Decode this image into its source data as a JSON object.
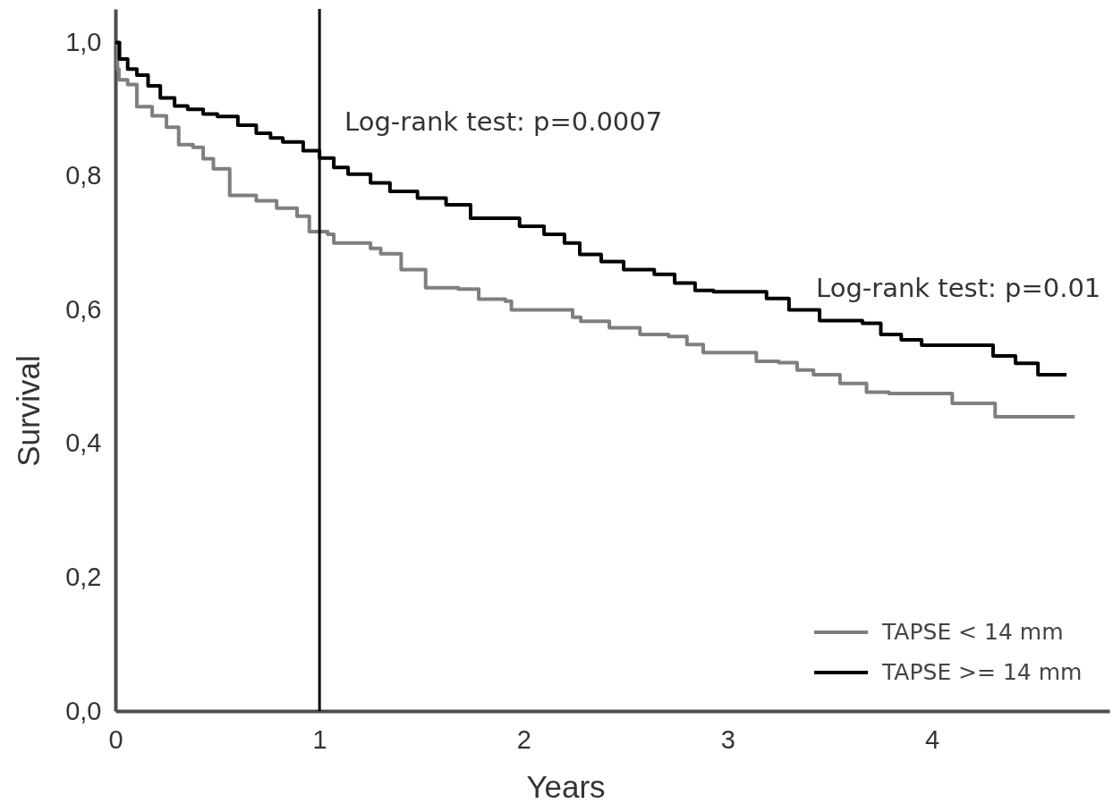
{
  "chart_data": {
    "type": "step",
    "xlabel": "Years",
    "ylabel": "Survival",
    "xlim": [
      0,
      4.87
    ],
    "ylim": [
      0,
      1.05
    ],
    "xticks": [
      0,
      1,
      2,
      3,
      4
    ],
    "yticks": [
      {
        "value": 0,
        "label": "0,0"
      },
      {
        "value": 0.2,
        "label": "0,2"
      },
      {
        "value": 0.4,
        "label": "0,4"
      },
      {
        "value": 0.6,
        "label": "0,6"
      },
      {
        "value": 0.8,
        "label": "0,8"
      },
      {
        "value": 1.0,
        "label": "1,0"
      }
    ],
    "legend": "bottom right",
    "series": [
      {
        "name": "TAPSE < 14 mm",
        "color": "#7f7f7f",
        "x": [
          0,
          0.01,
          0.017,
          0.06,
          0.105,
          0.18,
          0.25,
          0.31,
          0.38,
          0.43,
          0.48,
          0.56,
          0.69,
          0.79,
          0.89,
          0.95,
          1.04,
          1.07,
          1.25,
          1.3,
          1.4,
          1.52,
          1.68,
          1.78,
          1.91,
          1.94,
          2.24,
          2.28,
          2.42,
          2.57,
          2.71,
          2.8,
          2.88,
          3.14,
          3.25,
          3.34,
          3.42,
          3.55,
          3.68,
          3.79,
          4.1,
          4.31,
          4.7
        ],
        "values": [
          1.0,
          0.96,
          0.944,
          0.937,
          0.904,
          0.89,
          0.873,
          0.847,
          0.843,
          0.826,
          0.811,
          0.771,
          0.763,
          0.752,
          0.74,
          0.717,
          0.713,
          0.7,
          0.692,
          0.684,
          0.66,
          0.633,
          0.631,
          0.616,
          0.613,
          0.6,
          0.589,
          0.583,
          0.573,
          0.563,
          0.56,
          0.548,
          0.536,
          0.523,
          0.521,
          0.51,
          0.503,
          0.49,
          0.477,
          0.475,
          0.46,
          0.44,
          0.44
        ]
      },
      {
        "name": "TAPSE >= 14 mm",
        "color": "#000000",
        "x": [
          0,
          0.02,
          0.06,
          0.105,
          0.16,
          0.22,
          0.29,
          0.354,
          0.43,
          0.5,
          0.6,
          0.69,
          0.76,
          0.82,
          0.92,
          1.0,
          1.07,
          1.14,
          1.25,
          1.345,
          1.48,
          1.62,
          1.74,
          1.98,
          2.1,
          2.2,
          2.275,
          2.38,
          2.49,
          2.64,
          2.74,
          2.84,
          2.93,
          3.19,
          3.3,
          3.45,
          3.66,
          3.75,
          3.85,
          3.95,
          4.3,
          4.41,
          4.52,
          4.66
        ],
        "values": [
          1.0,
          0.975,
          0.96,
          0.951,
          0.935,
          0.917,
          0.905,
          0.9,
          0.893,
          0.889,
          0.876,
          0.864,
          0.857,
          0.851,
          0.838,
          0.827,
          0.813,
          0.803,
          0.79,
          0.777,
          0.767,
          0.757,
          0.737,
          0.725,
          0.713,
          0.7,
          0.683,
          0.672,
          0.66,
          0.653,
          0.64,
          0.629,
          0.627,
          0.617,
          0.6,
          0.584,
          0.58,
          0.563,
          0.555,
          0.547,
          0.531,
          0.52,
          0.503,
          0.503
        ]
      }
    ],
    "ref_lines": [
      {
        "axis": "x",
        "value": 1,
        "color": "#000000"
      }
    ],
    "annotations": [
      "Log-rank test: p=0.0007",
      "Log-rank test: p=0.01"
    ]
  }
}
